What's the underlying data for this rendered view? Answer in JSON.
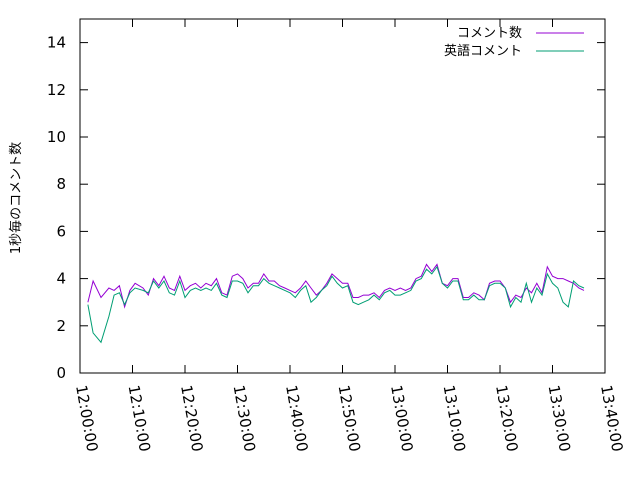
{
  "chart_data": {
    "type": "line",
    "title": "",
    "xlabel": "",
    "ylabel": "1秒毎のコメント数",
    "grid": false,
    "legend_position": "top-right",
    "x_tick_labels": [
      "12:00:00",
      "12:10:00",
      "12:20:00",
      "12:30:00",
      "12:40:00",
      "12:50:00",
      "13:00:00",
      "13:10:00",
      "13:20:00",
      "13:30:00",
      "13:40:00"
    ],
    "x_tick_minutes": [
      0,
      10,
      20,
      30,
      40,
      50,
      60,
      70,
      80,
      90,
      100
    ],
    "xlim_minutes": [
      0,
      100
    ],
    "y_ticks": [
      0,
      2,
      4,
      6,
      8,
      10,
      12,
      14
    ],
    "ylim": [
      0,
      15
    ],
    "series": [
      {
        "name": "コメント数",
        "color": "#9400d3",
        "x_minutes": [
          1.5,
          2.5,
          4,
          5.5,
          6.5,
          7.5,
          8.5,
          9.5,
          10.5,
          12,
          13,
          14,
          15,
          16,
          17,
          18,
          19,
          20,
          21,
          22,
          23,
          24,
          25,
          26,
          27,
          28,
          29,
          30,
          31,
          32,
          33,
          34,
          35,
          36,
          37,
          38,
          39,
          40,
          41,
          42,
          43,
          44,
          45,
          46,
          47,
          48,
          49,
          50,
          51,
          52,
          53,
          54,
          55,
          56,
          57,
          58,
          59,
          60,
          61,
          62,
          63,
          64,
          65,
          66,
          67,
          68,
          69,
          70,
          71,
          72,
          73,
          74,
          75,
          76,
          77,
          78,
          79,
          80,
          81,
          82,
          83,
          84,
          85,
          86,
          87,
          88,
          89,
          90,
          91,
          92,
          93,
          94,
          95,
          96
        ],
        "values": [
          3.0,
          3.9,
          3.2,
          3.6,
          3.5,
          3.7,
          2.8,
          3.5,
          3.8,
          3.6,
          3.3,
          4.0,
          3.7,
          4.1,
          3.6,
          3.5,
          4.1,
          3.5,
          3.7,
          3.8,
          3.6,
          3.8,
          3.7,
          4.0,
          3.4,
          3.3,
          4.1,
          4.2,
          4.0,
          3.6,
          3.8,
          3.8,
          4.2,
          3.9,
          3.9,
          3.7,
          3.6,
          3.5,
          3.4,
          3.6,
          3.9,
          3.6,
          3.3,
          3.5,
          3.8,
          4.2,
          4.0,
          3.8,
          3.8,
          3.2,
          3.2,
          3.3,
          3.3,
          3.4,
          3.2,
          3.5,
          3.6,
          3.5,
          3.6,
          3.5,
          3.6,
          4.0,
          4.1,
          4.6,
          4.3,
          4.6,
          3.8,
          3.7,
          4.0,
          4.0,
          3.2,
          3.2,
          3.4,
          3.3,
          3.1,
          3.8,
          3.9,
          3.9,
          3.6,
          3.0,
          3.3,
          3.2,
          3.6,
          3.4,
          3.8,
          3.4,
          4.5,
          4.1,
          4.0,
          4.0,
          3.9,
          3.8,
          3.6,
          3.5
        ]
      },
      {
        "name": "英語コメント",
        "color": "#009e73",
        "x_minutes": [
          1.5,
          2.5,
          4,
          5.5,
          6.5,
          7.5,
          8.5,
          9.5,
          10.5,
          12,
          13,
          14,
          15,
          16,
          17,
          18,
          19,
          20,
          21,
          22,
          23,
          24,
          25,
          26,
          27,
          28,
          29,
          30,
          31,
          32,
          33,
          34,
          35,
          36,
          37,
          38,
          39,
          40,
          41,
          42,
          43,
          44,
          45,
          46,
          47,
          48,
          49,
          50,
          51,
          52,
          53,
          54,
          55,
          56,
          57,
          58,
          59,
          60,
          61,
          62,
          63,
          64,
          65,
          66,
          67,
          68,
          69,
          70,
          71,
          72,
          73,
          74,
          75,
          76,
          77,
          78,
          79,
          80,
          81,
          82,
          83,
          84,
          85,
          86,
          87,
          88,
          89,
          90,
          91,
          92,
          93,
          94,
          95,
          96
        ],
        "values": [
          2.9,
          1.7,
          1.3,
          2.4,
          3.3,
          3.4,
          2.9,
          3.4,
          3.6,
          3.5,
          3.4,
          3.9,
          3.6,
          3.9,
          3.4,
          3.3,
          3.9,
          3.2,
          3.5,
          3.6,
          3.5,
          3.6,
          3.5,
          3.8,
          3.3,
          3.2,
          3.9,
          3.9,
          3.8,
          3.4,
          3.7,
          3.7,
          4.0,
          3.8,
          3.7,
          3.6,
          3.5,
          3.4,
          3.2,
          3.5,
          3.7,
          3.0,
          3.2,
          3.5,
          3.7,
          4.1,
          3.8,
          3.6,
          3.7,
          3.0,
          2.9,
          3.0,
          3.1,
          3.3,
          3.1,
          3.4,
          3.5,
          3.3,
          3.3,
          3.4,
          3.5,
          3.9,
          4.0,
          4.4,
          4.2,
          4.5,
          3.8,
          3.6,
          3.9,
          3.9,
          3.1,
          3.1,
          3.3,
          3.1,
          3.1,
          3.7,
          3.8,
          3.8,
          3.6,
          2.8,
          3.2,
          3.0,
          3.8,
          3.0,
          3.6,
          3.3,
          4.2,
          3.8,
          3.6,
          3.0,
          2.8,
          3.9,
          3.7,
          3.6
        ]
      }
    ]
  }
}
